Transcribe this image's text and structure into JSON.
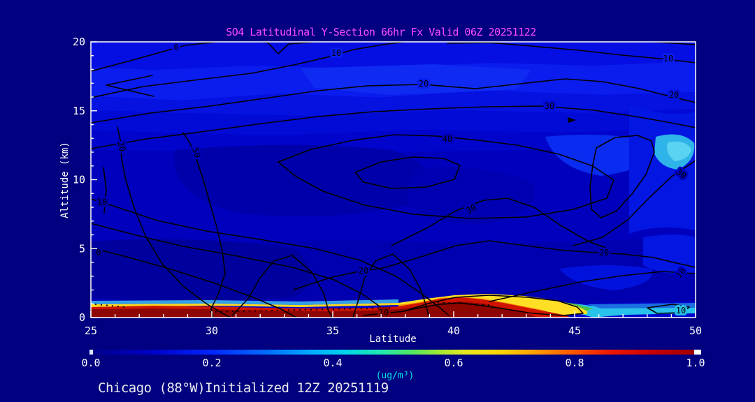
{
  "title": "SO4 Latitudinal Y-Section 66hr  Fx Valid 06Z 20251122",
  "footer": "Chicago (88°W)Initialized 12Z 20251119",
  "axes": {
    "x_label": "Latitude",
    "y_label": "Altitude (km)",
    "x_ticks": [
      "25",
      "30",
      "35",
      "40",
      "45",
      "50"
    ],
    "y_ticks": [
      "0",
      "5",
      "10",
      "15",
      "20"
    ]
  },
  "colorbar": {
    "ticks": [
      "0.0",
      "0.2",
      "0.4",
      "0.6",
      "0.8",
      "1.0"
    ],
    "units": "(ug/m³)"
  },
  "colors": {
    "background": "#000080",
    "title_color": "#ff4cff",
    "footer_color": "#e8e8ec",
    "axis_color": "#ffffff",
    "units_color": "#00e5e5",
    "plot_base_blue": "#0000cf",
    "surface_dark_red": "#8f0500"
  },
  "chart_data": {
    "type": "heatmap",
    "title": "SO4 Latitudinal Y-Section 66hr  Fx Valid 06Z 20251122",
    "subtitle": "Chicago (88°W)Initialized 12Z 20251119",
    "xlabel": "Latitude",
    "ylabel": "Altitude (km)",
    "xlim": [
      25,
      50
    ],
    "ylim": [
      0,
      20
    ],
    "x_ticks": [
      25,
      30,
      35,
      40,
      45,
      50
    ],
    "x_minor_tick_step": 1,
    "y_ticks": [
      0,
      5,
      10,
      15,
      20
    ],
    "y_minor_tick_step": 1,
    "fill_variable": "SO4 concentration",
    "fill_units": "ug/m3",
    "fill_range": [
      0.0,
      1.0
    ],
    "colorbar_tick_values": [
      0.0,
      0.2,
      0.4,
      0.6,
      0.8,
      1.0
    ],
    "palette_rainbow": [
      "#000090",
      "#0028ff",
      "#00aaff",
      "#00d4e8",
      "#50e860",
      "#e8e820",
      "#ffd400",
      "#ff9800",
      "#ff5500",
      "#c80000",
      "#a00000"
    ],
    "line_contour_levels": [
      0,
      10,
      20,
      30,
      40,
      50
    ],
    "grid": "off",
    "legend": "horizontal colorbar below x-axis, 0.0 to 1.0",
    "surface_layer_values_by_latitude": {
      "latitudes": [
        25,
        30,
        35,
        38,
        40,
        41,
        42,
        43,
        44,
        45,
        46,
        48,
        50
      ],
      "so4_ugm3": [
        1.0,
        1.0,
        1.0,
        1.0,
        0.95,
        0.8,
        0.65,
        0.55,
        0.45,
        0.4,
        0.35,
        0.3,
        0.3
      ]
    },
    "features": [
      "Deep red high-SO4 layer (~1.0 ug/m3) confined below ~1.5 km from 25N to ~40N",
      "Surface layer concentration decreases northward: yellow/green 41-44N, cyan/blue 44-50N",
      "Free troposphere mostly 0.0-0.2 ug/m3 (blue shades) with lighter blue bands 14-19 km",
      "Bright cyan pocket near 48-50N around 10-13 km",
      "Black line contours labeled 0-50 with closed 40/50 maximum centered near 37-40N, 9-11 km"
    ],
    "contour_labels": [
      {
        "text": "0",
        "x": 252,
        "y": 72,
        "rot": 0,
        "halo": "#050fe3"
      },
      {
        "text": "10",
        "x": 481,
        "y": 80,
        "rot": 0,
        "halo": "#0a1cee"
      },
      {
        "text": "20",
        "x": 606,
        "y": 124,
        "rot": 0,
        "halo": "#0a1cee"
      },
      {
        "text": "30",
        "x": 786,
        "y": 156,
        "rot": 0,
        "halo": "#020ad6"
      },
      {
        "text": "10",
        "x": 956,
        "y": 88,
        "rot": 0,
        "halo": "#0a1cee"
      },
      {
        "text": "20",
        "x": 964,
        "y": 140,
        "rot": 0,
        "halo": "#0512e0"
      },
      {
        "text": "40",
        "x": 640,
        "y": 203,
        "rot": 0,
        "halo": "#0000bd"
      },
      {
        "text": "20",
        "x": 170,
        "y": 211,
        "rot": 75,
        "halo": "#0000bd"
      },
      {
        "text": "50",
        "x": 277,
        "y": 220,
        "rot": 75,
        "halo": "#0000bd"
      },
      {
        "text": "30",
        "x": 972,
        "y": 252,
        "rot": 40,
        "halo": "#0000bd"
      },
      {
        "text": "30",
        "x": 676,
        "y": 303,
        "rot": -30,
        "halo": "#0000b2"
      },
      {
        "text": "20",
        "x": 864,
        "y": 366,
        "rot": 0,
        "halo": "#0000b0"
      },
      {
        "text": "10",
        "x": 146,
        "y": 294,
        "rot": 0,
        "halo": "#0000b0"
      },
      {
        "text": "0",
        "x": 141,
        "y": 366,
        "rot": 0,
        "halo": "#0000a0"
      },
      {
        "text": "20",
        "x": 520,
        "y": 392,
        "rot": 0,
        "halo": "#0000b0"
      },
      {
        "text": "10",
        "x": 977,
        "y": 394,
        "rot": -50,
        "halo": "#0000c4"
      },
      {
        "text": "10",
        "x": 549,
        "y": 452,
        "rot": 0,
        "halo": "#8f0500"
      },
      {
        "text": "10",
        "x": 974,
        "y": 449,
        "rot": 0,
        "halo": "#28c2ea"
      }
    ]
  }
}
